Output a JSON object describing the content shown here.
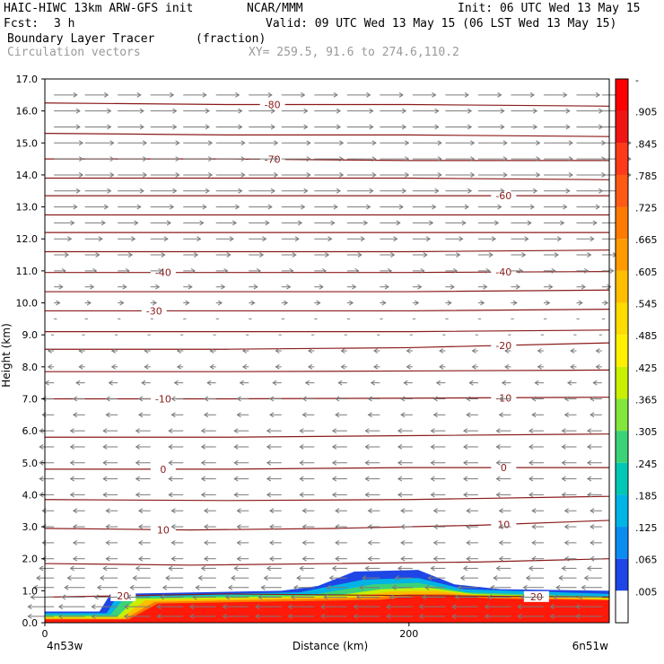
{
  "header": {
    "model": "HAIC-HIWC 13km ARW-GFS init",
    "org": "NCAR/MMM",
    "init": "Init: 06 UTC Wed 13 May 15",
    "fcst_label": "Fcst:",
    "fcst_value": "3 h",
    "valid": "Valid: 09 UTC Wed 13 May 15 (06 LST Wed 13 May 15)",
    "field": "Boundary Layer Tracer",
    "units": "(fraction)",
    "vectors": "Circulation vectors",
    "xy": "XY= 259.5, 91.6 to 274.6,110.2"
  },
  "chart_data": {
    "type": "heatmap",
    "title": "Boundary Layer Tracer (fraction)",
    "xlabel": "Distance (km)",
    "ylabel": "Height (km)",
    "xlim": [
      0,
      310
    ],
    "ylim": [
      0,
      17
    ],
    "x_ticks": [
      {
        "value": 0,
        "label": "0"
      },
      {
        "value": 200,
        "label": "200"
      }
    ],
    "x_end_labels": {
      "left": "4n53w",
      "right": "6n51w"
    },
    "y_ticks": [
      "0.0",
      "1.0",
      "2.0",
      "3.0",
      "4.0",
      "5.0",
      "6.0",
      "7.0",
      "8.0",
      "9.0",
      "10.0",
      "11.0",
      "12.0",
      "13.0",
      "14.0",
      "15.0",
      "16.0",
      "17.0"
    ],
    "colorbar": {
      "labels": [
        "-",
        ".905",
        ".845",
        ".785",
        ".725",
        ".665",
        ".605",
        ".545",
        ".485",
        ".425",
        ".365",
        ".305",
        ".245",
        ".185",
        ".125",
        ".065",
        ".005"
      ],
      "colors": [
        "#ff0000",
        "#f01515",
        "#ff3a1a",
        "#ff5a14",
        "#ff7a00",
        "#ff9a00",
        "#ffbe00",
        "#ffdc00",
        "#fff000",
        "#c8f000",
        "#82e63c",
        "#3cd278",
        "#00c8b4",
        "#00b4e6",
        "#0a8cf0",
        "#1e46e6",
        "#ffffff"
      ]
    },
    "tracer_layers": [
      {
        "level": 0.03,
        "color": "#1e46e6",
        "top": [
          [
            0,
            0.35
          ],
          [
            30,
            0.35
          ],
          [
            36,
            0.9
          ],
          [
            130,
            1.0
          ],
          [
            150,
            1.15
          ],
          [
            170,
            1.6
          ],
          [
            205,
            1.65
          ],
          [
            225,
            1.2
          ],
          [
            250,
            1.05
          ],
          [
            310,
            1.0
          ]
        ]
      },
      {
        "level": 0.1,
        "color": "#00b4e6",
        "top": [
          [
            0,
            0.3
          ],
          [
            34,
            0.3
          ],
          [
            40,
            0.85
          ],
          [
            140,
            0.95
          ],
          [
            175,
            1.35
          ],
          [
            205,
            1.4
          ],
          [
            230,
            1.05
          ],
          [
            310,
            0.9
          ]
        ]
      },
      {
        "level": 0.2,
        "color": "#3cd278",
        "top": [
          [
            0,
            0.25
          ],
          [
            36,
            0.25
          ],
          [
            44,
            0.8
          ],
          [
            150,
            0.9
          ],
          [
            180,
            1.2
          ],
          [
            205,
            1.25
          ],
          [
            232,
            0.95
          ],
          [
            310,
            0.82
          ]
        ]
      },
      {
        "level": 0.35,
        "color": "#c8f000",
        "top": [
          [
            0,
            0.2
          ],
          [
            40,
            0.2
          ],
          [
            50,
            0.75
          ],
          [
            160,
            0.85
          ],
          [
            185,
            1.05
          ],
          [
            210,
            1.1
          ],
          [
            235,
            0.9
          ],
          [
            310,
            0.78
          ]
        ]
      },
      {
        "level": 0.5,
        "color": "#ffbe00",
        "top": [
          [
            0,
            0.15
          ],
          [
            42,
            0.15
          ],
          [
            55,
            0.7
          ],
          [
            170,
            0.82
          ],
          [
            190,
            0.98
          ],
          [
            215,
            1.0
          ],
          [
            240,
            0.85
          ],
          [
            310,
            0.75
          ]
        ]
      },
      {
        "level": 0.7,
        "color": "#ff7a00",
        "top": [
          [
            0,
            0.12
          ],
          [
            44,
            0.12
          ],
          [
            60,
            0.65
          ],
          [
            180,
            0.78
          ],
          [
            200,
            0.9
          ],
          [
            220,
            0.9
          ],
          [
            245,
            0.8
          ],
          [
            310,
            0.72
          ]
        ]
      },
      {
        "level": 0.9,
        "color": "#ff1a0a",
        "top": [
          [
            0,
            0.1
          ],
          [
            46,
            0.1
          ],
          [
            62,
            0.6
          ],
          [
            185,
            0.72
          ],
          [
            200,
            0.82
          ],
          [
            225,
            0.82
          ],
          [
            250,
            0.75
          ],
          [
            310,
            0.7
          ]
        ]
      }
    ],
    "temperature_contours": [
      {
        "label": "20",
        "label_x": [
          43,
          270
        ],
        "points": [
          [
            0,
            0.8
          ],
          [
            100,
            0.9
          ],
          [
            200,
            0.85
          ],
          [
            310,
            0.8
          ]
        ]
      },
      {
        "label": "",
        "label_x": [],
        "points": [
          [
            0,
            1.85
          ],
          [
            80,
            1.8
          ],
          [
            160,
            1.85
          ],
          [
            240,
            1.9
          ],
          [
            310,
            2.0
          ]
        ]
      },
      {
        "label": "10",
        "label_x": [
          65,
          252
        ],
        "points": [
          [
            0,
            2.95
          ],
          [
            80,
            2.9
          ],
          [
            160,
            2.95
          ],
          [
            240,
            3.05
          ],
          [
            310,
            3.2
          ]
        ]
      },
      {
        "label": "",
        "label_x": [],
        "points": [
          [
            0,
            3.85
          ],
          [
            100,
            3.82
          ],
          [
            200,
            3.85
          ],
          [
            310,
            3.95
          ]
        ]
      },
      {
        "label": "0",
        "label_x": [
          65,
          252
        ],
        "points": [
          [
            0,
            4.8
          ],
          [
            100,
            4.8
          ],
          [
            200,
            4.85
          ],
          [
            310,
            4.85
          ]
        ]
      },
      {
        "label": "",
        "label_x": [],
        "points": [
          [
            0,
            5.8
          ],
          [
            100,
            5.8
          ],
          [
            200,
            5.85
          ],
          [
            310,
            5.9
          ]
        ]
      },
      {
        "label": "-10",
        "label_x": [
          65,
          252
        ],
        "points": [
          [
            0,
            7.0
          ],
          [
            100,
            7.0
          ],
          [
            200,
            7.02
          ],
          [
            310,
            7.05
          ]
        ]
      },
      {
        "label": "",
        "label_x": [],
        "points": [
          [
            0,
            7.85
          ],
          [
            100,
            7.85
          ],
          [
            200,
            7.87
          ],
          [
            310,
            7.9
          ]
        ]
      },
      {
        "label": "-20",
        "label_x": [
          252
        ],
        "points": [
          [
            0,
            8.55
          ],
          [
            100,
            8.55
          ],
          [
            200,
            8.6
          ],
          [
            310,
            8.75
          ]
        ]
      },
      {
        "label": "",
        "label_x": [],
        "points": [
          [
            0,
            9.1
          ],
          [
            100,
            9.1
          ],
          [
            200,
            9.1
          ],
          [
            310,
            9.15
          ]
        ]
      },
      {
        "label": "-30",
        "label_x": [
          60
        ],
        "points": [
          [
            0,
            9.75
          ],
          [
            100,
            9.75
          ],
          [
            200,
            9.75
          ],
          [
            310,
            9.8
          ]
        ]
      },
      {
        "label": "",
        "label_x": [],
        "points": [
          [
            0,
            10.35
          ],
          [
            100,
            10.35
          ],
          [
            200,
            10.35
          ],
          [
            310,
            10.4
          ]
        ]
      },
      {
        "label": "-40",
        "label_x": [
          65,
          252
        ],
        "points": [
          [
            0,
            10.95
          ],
          [
            100,
            10.95
          ],
          [
            200,
            10.95
          ],
          [
            310,
            10.98
          ]
        ]
      },
      {
        "label": "",
        "label_x": [],
        "points": [
          [
            0,
            11.6
          ],
          [
            100,
            11.6
          ],
          [
            200,
            11.6
          ],
          [
            310,
            11.65
          ]
        ]
      },
      {
        "label": "",
        "label_x": [],
        "points": [
          [
            0,
            12.2
          ],
          [
            100,
            12.2
          ],
          [
            200,
            12.2
          ],
          [
            310,
            12.2
          ]
        ]
      },
      {
        "label": "",
        "label_x": [],
        "points": [
          [
            0,
            12.75
          ],
          [
            100,
            12.75
          ],
          [
            200,
            12.75
          ],
          [
            310,
            12.75
          ]
        ]
      },
      {
        "label": "-60",
        "label_x": [
          252
        ],
        "points": [
          [
            0,
            13.35
          ],
          [
            100,
            13.35
          ],
          [
            200,
            13.35
          ],
          [
            310,
            13.35
          ]
        ]
      },
      {
        "label": "",
        "label_x": [],
        "points": [
          [
            0,
            13.9
          ],
          [
            100,
            13.9
          ],
          [
            200,
            13.9
          ],
          [
            310,
            13.85
          ]
        ]
      },
      {
        "label": "-70",
        "label_x": [
          125
        ],
        "points": [
          [
            0,
            14.5
          ],
          [
            100,
            14.5
          ],
          [
            200,
            14.45
          ],
          [
            310,
            14.45
          ]
        ]
      },
      {
        "label": "",
        "label_x": [],
        "points": [
          [
            0,
            15.3
          ],
          [
            100,
            15.25
          ],
          [
            200,
            15.25
          ],
          [
            310,
            15.2
          ]
        ]
      },
      {
        "label": "-80",
        "label_x": [
          125
        ],
        "points": [
          [
            0,
            16.25
          ],
          [
            100,
            16.2
          ],
          [
            200,
            16.2
          ],
          [
            310,
            16.15
          ]
        ]
      }
    ],
    "vector_field": {
      "x_columns": [
        5,
        22,
        40,
        58,
        76,
        94,
        112,
        130,
        148,
        166,
        184,
        202,
        220,
        238,
        256,
        274,
        292,
        306
      ],
      "levels": [
        0.2,
        0.5,
        0.8,
        1.1,
        1.4,
        1.7,
        2.0,
        2.5,
        3.0,
        3.5,
        4.0,
        4.5,
        5.0,
        5.5,
        6.0,
        6.5,
        7.0,
        7.5,
        8.0,
        8.5,
        9.0,
        9.5,
        10.0,
        10.5,
        11.0,
        11.5,
        12.0,
        12.5,
        13.0,
        13.5,
        14.0,
        14.5,
        15.0,
        15.5,
        16.0,
        16.5
      ],
      "u_profile": [
        -9,
        -9,
        -8,
        -7,
        -6,
        -5,
        -4,
        -4,
        -4,
        -4,
        -5,
        -5,
        -5,
        -5,
        -5,
        -4,
        -4,
        -3,
        -2,
        -2,
        -1,
        1,
        2,
        3,
        4,
        5,
        6,
        7,
        8,
        9,
        10,
        10,
        10,
        9,
        9,
        8
      ],
      "color": "#7a7a7a"
    }
  }
}
